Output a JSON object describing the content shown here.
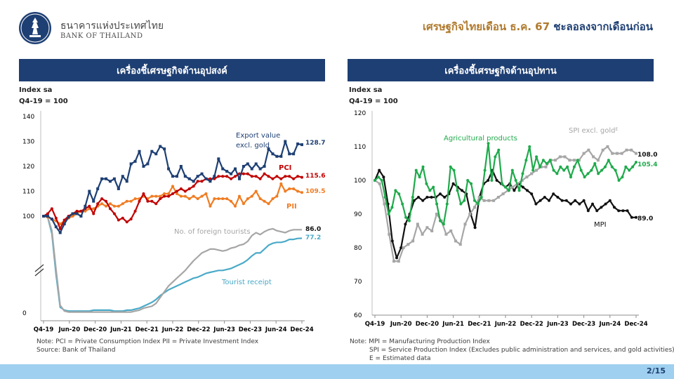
{
  "header": {
    "bank_name_th": "ธนาคารแห่งประเทศไทย",
    "bank_name_en": "BANK OF THAILAND",
    "headline_accent": "เศรษฐกิจไทยเดือน ธ.ค. 67",
    "headline_rest": " ชะลอลงจากเดือนก่อน"
  },
  "footer": {
    "page": "2/15"
  },
  "left": {
    "title": "เครื่องชี้เศรษฐกิจด้านอุปสงค์",
    "ylabel_line1": "Index sa",
    "ylabel_line2": "Q4-19 = 100",
    "notes": [
      "Note: PCI = Private Consumption Index    PII = Private Investment Index",
      "Source: Bank of Thailand"
    ]
  },
  "right": {
    "title": "เครื่องชี้เศรษฐกิจด้านอุปทาน",
    "ylabel_line1": "Index sa",
    "ylabel_line2": "Q4-19 = 100",
    "notes": [
      "Note: MPI = Manufacturing Production Index",
      "SPI = Service Production Index (Excludes public administration and services, and gold activities)",
      "E = Estimated data"
    ]
  },
  "colors": {
    "navy": "#1e3f73",
    "red": "#c00000",
    "orange": "#f07c22",
    "gray": "#a6a6a6",
    "teal": "#4aaac8",
    "green": "#1faa4b",
    "black": "#111111",
    "gold": "#b07a2e"
  },
  "chart_data": [
    {
      "type": "line",
      "xlabels": [
        "Q4-19",
        "Jun-20",
        "Dec-20",
        "Jun-21",
        "Dec-21",
        "Jun-22",
        "Dec-22",
        "Jun-23",
        "Dec-23",
        "Jun-24",
        "Dec-24"
      ],
      "yticks": [
        "140",
        "130",
        "120",
        "110",
        "100",
        "0"
      ],
      "ylim": [
        0,
        140
      ],
      "axis_break": true,
      "series": [
        {
          "name": "Export value excl. gold",
          "label_line1": "Export value",
          "label_line2": "excl. gold",
          "end_label": "128.7",
          "color": "#1e3f73",
          "marker": "square",
          "values": [
            100,
            100,
            97,
            89,
            83,
            92,
            99,
            101,
            101,
            100,
            104,
            110,
            106,
            111,
            115,
            115,
            114,
            115,
            111,
            116,
            114,
            121,
            122,
            126,
            120,
            121,
            126,
            125,
            128,
            127,
            119,
            116,
            116,
            120,
            116,
            115,
            114,
            116,
            117,
            115,
            114,
            116,
            123,
            119,
            118,
            117,
            119,
            115,
            120,
            121,
            119,
            121,
            119,
            120,
            127,
            125,
            124,
            124,
            130,
            125,
            125,
            129,
            128.7
          ]
        },
        {
          "name": "PCI",
          "label_line1": "PCI",
          "end_label": "115.6",
          "color": "#c00000",
          "marker": "circle",
          "values": [
            100,
            101,
            103,
            98,
            87,
            96,
            100,
            101,
            102,
            102,
            103,
            104,
            101,
            105,
            107,
            106,
            103,
            101,
            96,
            98,
            94,
            97,
            102,
            106,
            109,
            106,
            106,
            105,
            107,
            108,
            108,
            109,
            110,
            111,
            110,
            111,
            112,
            114,
            114,
            115,
            115,
            115,
            116,
            116,
            116,
            115,
            116,
            117,
            117,
            117,
            116,
            116,
            115,
            117,
            116,
            115,
            116,
            115,
            116,
            116,
            115,
            116,
            115.6
          ]
        },
        {
          "name": "PII",
          "label_line1": "PII",
          "end_label": "109.5",
          "color": "#f07c22",
          "marker": "circle",
          "values": [
            100,
            99,
            97,
            95,
            92,
            95,
            98,
            100,
            101,
            102,
            102,
            103,
            103,
            104,
            105,
            104,
            105,
            104,
            104,
            105,
            106,
            106,
            107,
            107,
            108,
            107,
            108,
            108,
            108,
            109,
            109,
            112,
            109,
            108,
            108,
            107,
            108,
            107,
            108,
            109,
            104,
            107,
            107,
            107,
            107,
            106,
            104,
            108,
            105,
            107,
            108,
            110,
            107,
            106,
            105,
            107,
            108,
            113,
            110,
            111,
            111,
            110,
            109.5
          ]
        },
        {
          "name": "No. of foreign tourists",
          "label_line1": "No. of foreign tourists",
          "end_label": "86.0",
          "color": "#a6a6a6",
          "marker": "none",
          "values": [
            100,
            99,
            85,
            45,
            8,
            2,
            1,
            1,
            1,
            1,
            1,
            1,
            1,
            1,
            1,
            1,
            1,
            1,
            1,
            1,
            1,
            1,
            2,
            3,
            5,
            6,
            7,
            10,
            16,
            22,
            28,
            32,
            36,
            40,
            44,
            49,
            54,
            58,
            62,
            64,
            66,
            66,
            65,
            64,
            65,
            67,
            68,
            70,
            71,
            74,
            80,
            83,
            81,
            84,
            86,
            87,
            85,
            84,
            83,
            85,
            86,
            86,
            86.0
          ]
        },
        {
          "name": "Tourist receipt",
          "label_line1": "Tourist receipt",
          "end_label": "77.2",
          "color": "#4aaac8",
          "marker": "none",
          "values": [
            100,
            99,
            82,
            40,
            6,
            3,
            2,
            2,
            2,
            2,
            2,
            2,
            3,
            3,
            3,
            3,
            3,
            2,
            2,
            2,
            3,
            3,
            4,
            5,
            7,
            9,
            11,
            14,
            18,
            21,
            24,
            26,
            28,
            30,
            32,
            34,
            36,
            37,
            39,
            41,
            42,
            43,
            44,
            44,
            45,
            46,
            48,
            50,
            52,
            55,
            59,
            62,
            62,
            66,
            70,
            72,
            73,
            73,
            74,
            76,
            76,
            77,
            77.2
          ]
        }
      ]
    },
    {
      "type": "line",
      "xlabels": [
        "Q4-19",
        "Jun-20",
        "Dec-20",
        "Jun-21",
        "Dec-21",
        "Jun-22",
        "Dec-22",
        "Jun-23",
        "Dec-23",
        "Jun-24",
        "Dec-24"
      ],
      "yticks": [
        "120",
        "110",
        "100",
        "90",
        "80",
        "70",
        "60"
      ],
      "ylim": [
        60,
        120
      ],
      "series": [
        {
          "name": "Agricultural products",
          "label_line1": "Agricultural products",
          "end_label": "105.4",
          "color": "#1faa4b",
          "marker": "circle",
          "values": [
            100,
            101,
            100,
            95,
            90,
            92,
            97,
            96,
            93,
            89,
            88,
            95,
            103,
            101,
            104,
            99,
            97,
            98,
            93,
            88,
            87,
            93,
            104,
            103,
            97,
            93,
            94,
            100,
            99,
            94,
            93,
            95,
            103,
            111,
            100,
            107,
            109,
            99,
            98,
            97,
            103,
            100,
            97,
            102,
            106,
            110,
            103,
            107,
            104,
            106,
            105,
            106,
            103,
            102,
            104,
            103,
            104,
            101,
            104,
            106,
            103,
            101,
            102,
            103,
            105,
            102,
            103,
            104,
            106,
            104,
            103,
            100,
            101,
            104,
            103,
            104,
            105.4
          ]
        },
        {
          "name": "SPI excl. gold",
          "label_line1": "SPI excl. gold",
          "superscript": "E",
          "end_label": "108.0",
          "color": "#a6a6a6",
          "marker": "square",
          "values": [
            100,
            99,
            93,
            84,
            76,
            76,
            80,
            81,
            82,
            87,
            84,
            86,
            85,
            90,
            88,
            84,
            85,
            82,
            81,
            87,
            90,
            92,
            95,
            94,
            94,
            94,
            95,
            96,
            97,
            98,
            99,
            100,
            101,
            102,
            103,
            104,
            104,
            106,
            106,
            107,
            107,
            106,
            106,
            106,
            108,
            109,
            107,
            106,
            109,
            110,
            108,
            108,
            108,
            109,
            109,
            108.0
          ]
        },
        {
          "name": "MPI",
          "label_line1": "MPI",
          "end_label": "89.0",
          "color": "#111111",
          "marker": "circle",
          "values": [
            100,
            103,
            101,
            93,
            82,
            77,
            80,
            87,
            90,
            94,
            95,
            94,
            95,
            95,
            95,
            96,
            95,
            96,
            99,
            98,
            97,
            96,
            90,
            86,
            95,
            99,
            100,
            103,
            100,
            99,
            98,
            99,
            97,
            99,
            98,
            97,
            96,
            93,
            94,
            95,
            94,
            96,
            95,
            94,
            94,
            93,
            94,
            93,
            94,
            91,
            93,
            91,
            92,
            93,
            94,
            92,
            91,
            91,
            91,
            89,
            89.0
          ]
        }
      ]
    }
  ]
}
